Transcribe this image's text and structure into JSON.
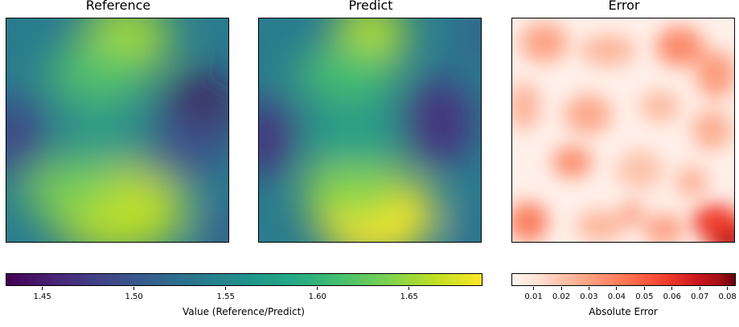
{
  "chart_data": [
    {
      "type": "heatmap",
      "title": "Reference",
      "colormap": "viridis",
      "value_range": [
        1.43,
        1.69
      ],
      "features": [
        {
          "region": "top-center",
          "level": "high (~1.62)"
        },
        {
          "region": "right-middle",
          "level": "low (~1.43)"
        },
        {
          "region": "left-middle",
          "level": "low (~1.48)"
        },
        {
          "region": "bottom-center",
          "level": "high (~1.67)"
        }
      ]
    },
    {
      "type": "heatmap",
      "title": "Predict",
      "colormap": "viridis",
      "value_range": [
        1.43,
        1.69
      ],
      "features": [
        {
          "region": "top-center",
          "level": "high (~1.63)"
        },
        {
          "region": "right-middle",
          "level": "low (~1.45)"
        },
        {
          "region": "left-middle",
          "level": "low (~1.47)"
        },
        {
          "region": "bottom-center",
          "level": "high (~1.69)"
        }
      ]
    },
    {
      "type": "heatmap",
      "title": "Error",
      "colormap": "Reds",
      "value_range": [
        0.002,
        0.083
      ],
      "features": [
        {
          "region": "bottom-right corner",
          "level": "max (~0.08)"
        },
        {
          "region": "scattered patches",
          "level": "~0.03-0.05"
        }
      ]
    }
  ],
  "colorbars": [
    {
      "label": "Value (Reference/Predict)",
      "colormap": "viridis",
      "range": [
        1.43,
        1.69
      ],
      "ticks": [
        1.45,
        1.5,
        1.55,
        1.6,
        1.65
      ],
      "tick_labels": [
        "1.45",
        "1.50",
        "1.55",
        "1.60",
        "1.65"
      ]
    },
    {
      "label": "Absolute Error",
      "colormap": "Reds",
      "range": [
        0.002,
        0.083
      ],
      "ticks": [
        0.01,
        0.02,
        0.03,
        0.04,
        0.05,
        0.06,
        0.07,
        0.08
      ],
      "tick_labels": [
        "0.01",
        "0.02",
        "0.03",
        "0.04",
        "0.05",
        "0.06",
        "0.07",
        "0.08"
      ]
    }
  ]
}
